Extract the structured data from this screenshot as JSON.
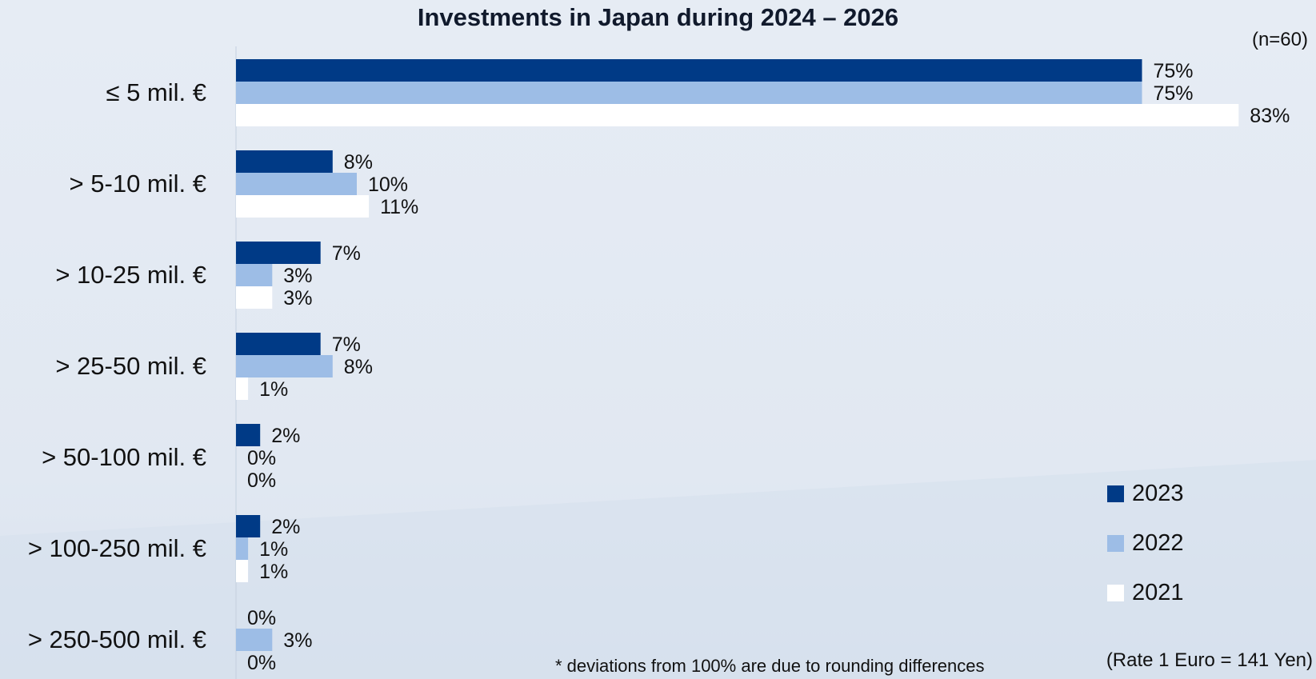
{
  "chart_data": {
    "type": "bar",
    "orientation": "horizontal",
    "title": "Investments in Japan during 2024 – 2026",
    "sample_note": "(n=60)",
    "categories": [
      "≤ 5 mil. €",
      "> 5-10 mil. €",
      "> 10-25 mil. €",
      "> 25-50 mil. €",
      "> 50-100 mil. €",
      "> 100-250 mil. €",
      "> 250-500 mil. €"
    ],
    "series": [
      {
        "name": "2023",
        "color": "#003a86",
        "values": [
          75,
          8,
          7,
          7,
          2,
          2,
          0
        ]
      },
      {
        "name": "2022",
        "color": "#9dbde6",
        "values": [
          75,
          10,
          3,
          8,
          0,
          1,
          3
        ]
      },
      {
        "name": "2021",
        "color": "#ffffff",
        "values": [
          83,
          11,
          3,
          1,
          0,
          1,
          0
        ]
      }
    ],
    "value_suffix": "%",
    "xlim": [
      0,
      100
    ],
    "legend_position": "bottom-right",
    "grid": false,
    "footnote": "* deviations from 100% are due to rounding differences",
    "rate_note": "(Rate 1 Euro = 141 Yen)"
  }
}
